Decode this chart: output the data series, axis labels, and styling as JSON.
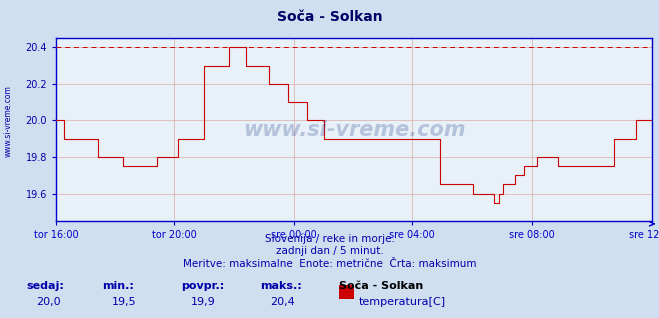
{
  "title": "Soča - Solkan",
  "bg_color": "#d0dff0",
  "plot_bg_color": "#e8f0f8",
  "line_color": "#cc0000",
  "grid_color": "#ddaaaa",
  "axis_color": "#0000cc",
  "text_color": "#0000aa",
  "dashed_line_color": "#cc0000",
  "dashed_line_value": 20.4,
  "ylim": [
    19.45,
    20.45
  ],
  "yticks": [
    19.6,
    19.8,
    20.0,
    20.2,
    20.4
  ],
  "xlabel_ticks": [
    "tor 16:00",
    "tor 20:00",
    "sre 00:00",
    "sre 04:00",
    "sre 08:00",
    "sre 12:00"
  ],
  "subtitle1": "Slovenija / reke in morje.",
  "subtitle2": "zadnji dan / 5 minut.",
  "subtitle3": "Meritve: maksimalne  Enote: metrične  Črta: maksimum",
  "footer_labels": [
    "sedaj:",
    "min.:",
    "povpr.:",
    "maks.:"
  ],
  "footer_values": [
    "20,0",
    "19,5",
    "19,9",
    "20,4"
  ],
  "footer_series_name": "Soča - Solkan",
  "footer_series_unit": "temperatura[C]",
  "footer_series_color": "#cc0000",
  "watermark": "www.si-vreme.com",
  "left_label": "www.si-vreme.com",
  "y_data": [
    20.0,
    20.0,
    20.0,
    20.0,
    19.9,
    19.9,
    19.9,
    19.9,
    19.9,
    19.9,
    19.9,
    19.9,
    19.9,
    19.9,
    19.9,
    19.9,
    19.9,
    19.9,
    19.9,
    19.9,
    19.8,
    19.8,
    19.8,
    19.8,
    19.8,
    19.8,
    19.8,
    19.8,
    19.8,
    19.8,
    19.8,
    19.8,
    19.75,
    19.75,
    19.75,
    19.75,
    19.75,
    19.75,
    19.75,
    19.75,
    19.75,
    19.75,
    19.75,
    19.75,
    19.75,
    19.75,
    19.75,
    19.75,
    19.8,
    19.8,
    19.8,
    19.8,
    19.8,
    19.8,
    19.8,
    19.8,
    19.8,
    19.8,
    19.9,
    19.9,
    19.9,
    19.9,
    19.9,
    19.9,
    19.9,
    19.9,
    19.9,
    19.9,
    19.9,
    19.9,
    20.3,
    20.3,
    20.3,
    20.3,
    20.3,
    20.3,
    20.3,
    20.3,
    20.3,
    20.3,
    20.3,
    20.3,
    20.4,
    20.4,
    20.4,
    20.4,
    20.4,
    20.4,
    20.4,
    20.4,
    20.3,
    20.3,
    20.3,
    20.3,
    20.3,
    20.3,
    20.3,
    20.3,
    20.3,
    20.3,
    20.3,
    20.2,
    20.2,
    20.2,
    20.2,
    20.2,
    20.2,
    20.2,
    20.2,
    20.2,
    20.1,
    20.1,
    20.1,
    20.1,
    20.1,
    20.1,
    20.1,
    20.1,
    20.1,
    20.0,
    20.0,
    20.0,
    20.0,
    20.0,
    20.0,
    20.0,
    20.0,
    19.9,
    19.9,
    19.9,
    19.9,
    19.9,
    19.9,
    19.9,
    19.9,
    19.9,
    19.9,
    19.9,
    19.9,
    19.9,
    19.9,
    19.9,
    19.9,
    19.9,
    19.9,
    19.9,
    19.9,
    19.9,
    19.9,
    19.9,
    19.9,
    19.9,
    19.9,
    19.9,
    19.9,
    19.9,
    19.9,
    19.9,
    19.9,
    19.9,
    19.9,
    19.9,
    19.9,
    19.9,
    19.9,
    19.9,
    19.9,
    19.9,
    19.9,
    19.9,
    19.9,
    19.9,
    19.9,
    19.9,
    19.9,
    19.9,
    19.9,
    19.9,
    19.9,
    19.9,
    19.9,
    19.9,
    19.65,
    19.65,
    19.65,
    19.65,
    19.65,
    19.65,
    19.65,
    19.65,
    19.65,
    19.65,
    19.65,
    19.65,
    19.65,
    19.65,
    19.65,
    19.65,
    19.6,
    19.6,
    19.6,
    19.6,
    19.6,
    19.6,
    19.6,
    19.6,
    19.6,
    19.6,
    19.55,
    19.55,
    19.6,
    19.6,
    19.65,
    19.65,
    19.65,
    19.65,
    19.65,
    19.65,
    19.7,
    19.7,
    19.7,
    19.7,
    19.75,
    19.75,
    19.75,
    19.75,
    19.75,
    19.75,
    19.8,
    19.8,
    19.8,
    19.8,
    19.8,
    19.8,
    19.8,
    19.8,
    19.8,
    19.8,
    19.75,
    19.75,
    19.75,
    19.75,
    19.75,
    19.75,
    19.75,
    19.75,
    19.75,
    19.75,
    19.75,
    19.75,
    19.75,
    19.75,
    19.75,
    19.75,
    19.75,
    19.75,
    19.75,
    19.75,
    19.75,
    19.75,
    19.75,
    19.75,
    19.75,
    19.75,
    19.75,
    19.9,
    19.9,
    19.9,
    19.9,
    19.9,
    19.9,
    19.9,
    19.9,
    19.9,
    19.9,
    20.0,
    20.0,
    20.0,
    20.0,
    20.0,
    20.0,
    20.0,
    20.0,
    20.0
  ]
}
